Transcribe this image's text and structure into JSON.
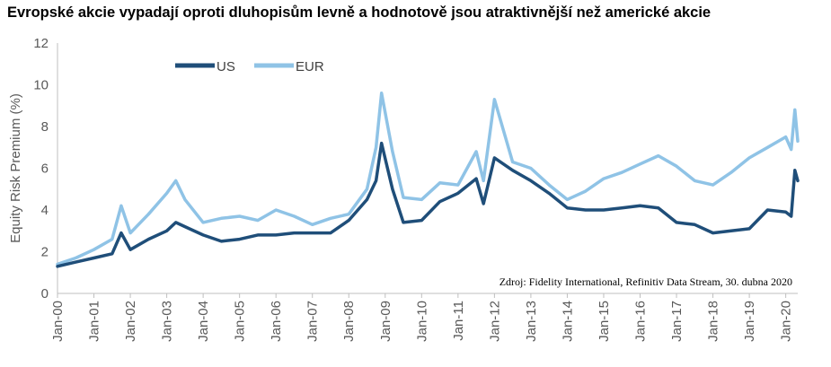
{
  "title": "Evropské akcie vypadají oproti dluhopisům levně a hodnotově jsou atraktivnější než americké akcie",
  "source_note": "Zdroj: Fidelity International, Refinitiv Data Stream, 30. dubna 2020",
  "chart_data": {
    "type": "line",
    "title": "Evropské akcie vypadají oproti dluhopisům levně a hodnotově jsou atraktivnější než americké akcie",
    "ylabel": "Equity Risk Premium (%)",
    "xlabel": "",
    "ylim": [
      0,
      12
    ],
    "yticks": [
      0,
      2,
      4,
      6,
      8,
      10,
      12
    ],
    "xlim": [
      2000.0,
      2020.33
    ],
    "xtick_labels": [
      "Jan-00",
      "Jan-01",
      "Jan-02",
      "Jan-03",
      "Jan-04",
      "Jan-05",
      "Jan-06",
      "Jan-07",
      "Jan-08",
      "Jan-09",
      "Jan-10",
      "Jan-11",
      "Jan-12",
      "Jan-13",
      "Jan-14",
      "Jan-15",
      "Jan-16",
      "Jan-17",
      "Jan-18",
      "Jan-19",
      "Jan-20"
    ],
    "grid": false,
    "legend_position": "top-left",
    "series": [
      {
        "name": "US",
        "color": "#1f4e79",
        "x": [
          2000.0,
          2000.5,
          2001.0,
          2001.5,
          2001.75,
          2002.0,
          2002.5,
          2003.0,
          2003.25,
          2003.5,
          2004.0,
          2004.5,
          2005.0,
          2005.5,
          2006.0,
          2006.5,
          2007.0,
          2007.5,
          2008.0,
          2008.5,
          2008.75,
          2008.9,
          2009.2,
          2009.5,
          2010.0,
          2010.5,
          2011.0,
          2011.5,
          2011.7,
          2012.0,
          2012.5,
          2013.0,
          2013.5,
          2014.0,
          2014.5,
          2015.0,
          2015.5,
          2016.0,
          2016.5,
          2017.0,
          2017.5,
          2018.0,
          2018.5,
          2019.0,
          2019.5,
          2020.0,
          2020.15,
          2020.25,
          2020.33
        ],
        "values": [
          1.3,
          1.5,
          1.7,
          1.9,
          2.9,
          2.1,
          2.6,
          3.0,
          3.4,
          3.2,
          2.8,
          2.5,
          2.6,
          2.8,
          2.8,
          2.9,
          2.9,
          2.9,
          3.5,
          4.5,
          5.4,
          7.2,
          5.0,
          3.4,
          3.5,
          4.4,
          4.8,
          5.5,
          4.3,
          6.5,
          5.9,
          5.4,
          4.8,
          4.1,
          4.0,
          4.0,
          4.1,
          4.2,
          4.1,
          3.4,
          3.3,
          2.9,
          3.0,
          3.1,
          4.0,
          3.9,
          3.7,
          5.9,
          5.4
        ]
      },
      {
        "name": "EUR",
        "color": "#8fc3e6",
        "x": [
          2000.0,
          2000.5,
          2001.0,
          2001.5,
          2001.75,
          2002.0,
          2002.5,
          2003.0,
          2003.25,
          2003.5,
          2004.0,
          2004.5,
          2005.0,
          2005.5,
          2006.0,
          2006.5,
          2007.0,
          2007.5,
          2008.0,
          2008.5,
          2008.75,
          2008.9,
          2009.2,
          2009.5,
          2010.0,
          2010.5,
          2011.0,
          2011.5,
          2011.7,
          2012.0,
          2012.5,
          2013.0,
          2013.5,
          2014.0,
          2014.5,
          2015.0,
          2015.5,
          2016.0,
          2016.5,
          2017.0,
          2017.5,
          2018.0,
          2018.5,
          2019.0,
          2019.5,
          2020.0,
          2020.15,
          2020.25,
          2020.33
        ],
        "values": [
          1.4,
          1.7,
          2.1,
          2.6,
          4.2,
          2.9,
          3.8,
          4.8,
          5.4,
          4.5,
          3.4,
          3.6,
          3.7,
          3.5,
          4.0,
          3.7,
          3.3,
          3.6,
          3.8,
          5.0,
          7.0,
          9.6,
          6.8,
          4.6,
          4.5,
          5.3,
          5.2,
          6.8,
          5.4,
          9.3,
          6.3,
          6.0,
          5.2,
          4.5,
          4.9,
          5.5,
          5.8,
          6.2,
          6.6,
          6.1,
          5.4,
          5.2,
          5.8,
          6.5,
          7.0,
          7.5,
          6.9,
          8.8,
          7.3
        ]
      }
    ]
  }
}
